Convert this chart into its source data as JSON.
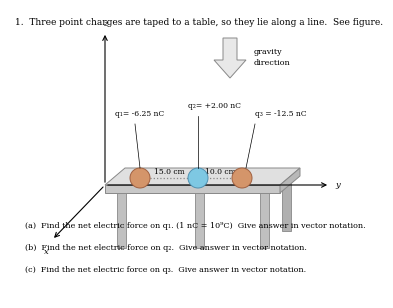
{
  "title": "1.  Three point charges are taped to a table, so they lie along a line.  See figure.",
  "title_fontsize": 6.5,
  "gravity_label": "gravity\ndirection",
  "q1_label": "q₁= -6.25 nC",
  "q2_label": "q₂= +2.00 nC",
  "q3_label": "q₃ = -12.5 nC",
  "dist1_label": "15.0 cm",
  "dist2_label": "10.0 cm",
  "part_a": "(a)  Find the net electric force on q₁. (1 nC = 10⁹C)  Give answer in vector notation.",
  "part_b": "(b)  Find the net electric force on q₂.  Give answer in vector notation.",
  "part_c": "(c)  Find the net electric force on q₃.  Give answer in vector notation.",
  "bg_color": "#ffffff",
  "q1_color": "#d4956a",
  "q2_color": "#7ec8e3",
  "q3_color": "#d4956a",
  "table_top_color": "#e0e0e0",
  "table_front_color": "#c8c8c8",
  "table_right_color": "#b8b8b8",
  "table_leg_color": "#c0c0c0",
  "text_color": "#000000",
  "axis_color": "#000000",
  "font_size": 6.0,
  "label_fontsize": 5.8,
  "q_label_fontsize": 5.5
}
